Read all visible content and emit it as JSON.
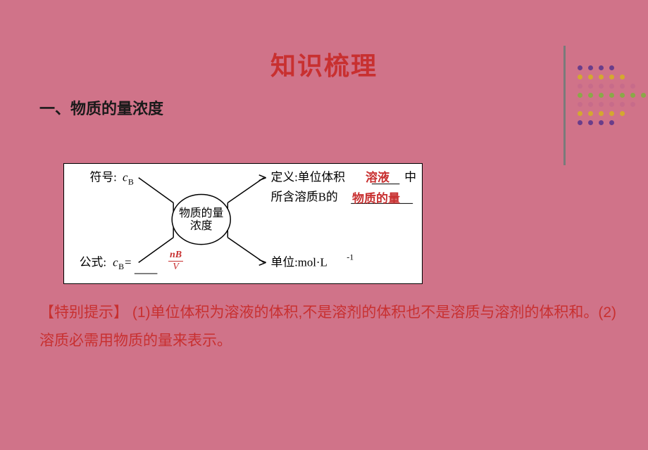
{
  "background_color": "#d07389",
  "title": {
    "text": "知识梳理",
    "color": "#c83030",
    "fontsize": 36
  },
  "section": {
    "heading": "一、物质的量浓度"
  },
  "diagram": {
    "symbol_label": "符号:",
    "symbol_value": "cB",
    "formula_label": "公式:",
    "formula_cb": "cB=",
    "formula_numerator": "nB",
    "formula_denominator": "V",
    "center_label": "物质的量浓度",
    "definition_line1": "定义:单位体积",
    "definition_line1_red": "溶液",
    "definition_line1_end": "中",
    "definition_line2": "所含溶质B的",
    "definition_line2_red": "物质的量",
    "unit_label": "单位:mol·L⁻¹",
    "background": "#ffffff",
    "text_color": "#000000",
    "red_color": "#c83030"
  },
  "note": {
    "prefix": "【特别提示】",
    "body": "(1)单位体积为溶液的体积,不是溶剂的体积也不是溶质与溶剂的体积和。(2)溶质必需用物质的量来表示。",
    "color": "#c83030"
  },
  "dots": {
    "colors": {
      "purple": "#6a3d8a",
      "yellow": "#d4a82f",
      "pink": "#c76b8a",
      "green": "#8aa848"
    },
    "rows": [
      [
        "purple",
        "purple",
        "purple",
        "purple"
      ],
      [
        "yellow",
        "yellow",
        "yellow",
        "yellow",
        "yellow"
      ],
      [
        "pink",
        "pink",
        "pink",
        "pink",
        "pink",
        "pink"
      ],
      [
        "green",
        "green",
        "green",
        "green",
        "green",
        "green",
        "green"
      ],
      [
        "pink",
        "pink",
        "pink",
        "pink",
        "pink",
        "pink"
      ],
      [
        "yellow",
        "yellow",
        "yellow",
        "yellow",
        "yellow"
      ],
      [
        "purple",
        "purple",
        "purple",
        "purple"
      ]
    ]
  },
  "vertical_line_color": "#7a7a7a"
}
